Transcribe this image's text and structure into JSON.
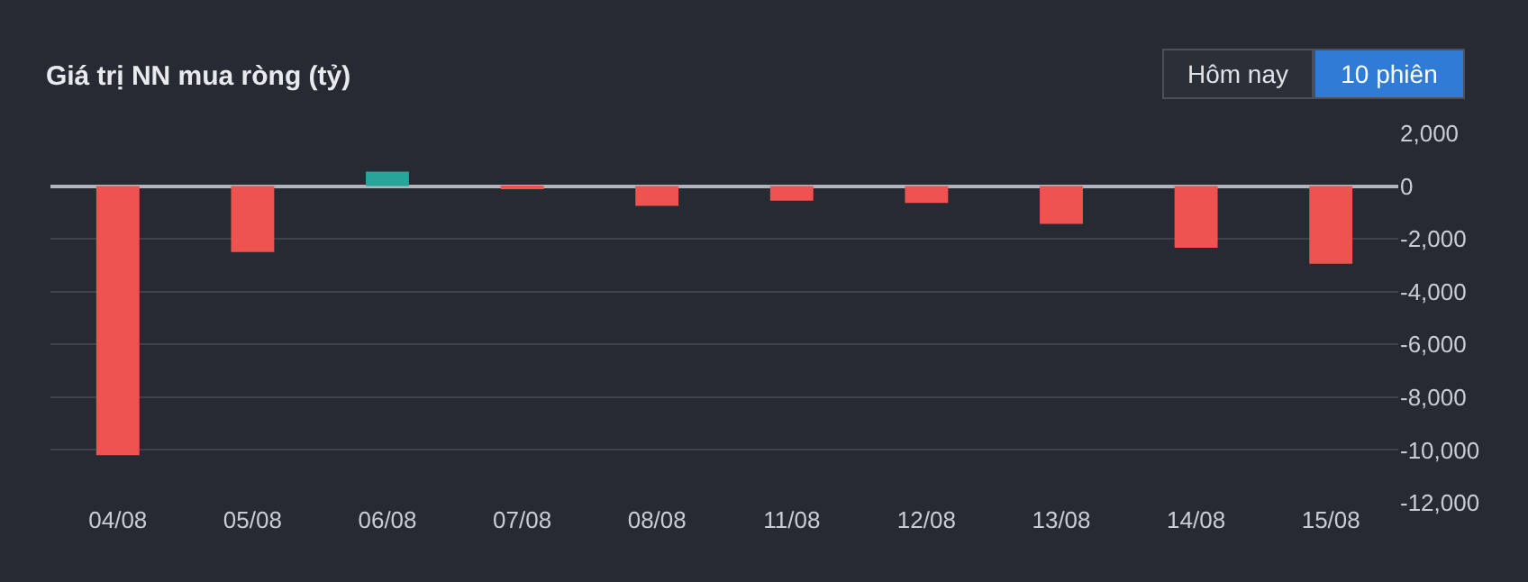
{
  "chart_data": {
    "type": "bar",
    "title": "Giá trị NN mua ròng (tỷ)",
    "categories": [
      "04/08",
      "05/08",
      "06/08",
      "07/08",
      "08/08",
      "11/08",
      "12/08",
      "13/08",
      "14/08",
      "15/08"
    ],
    "values": [
      -10200,
      -2500,
      550,
      -50,
      -750,
      -550,
      -640,
      -1430,
      -2340,
      -2940
    ],
    "colors": [
      "#ef5350",
      "#ef5350",
      "#26a69a",
      "#ef5350",
      "#ef5350",
      "#ef5350",
      "#ef5350",
      "#ef5350",
      "#ef5350",
      "#ef5350"
    ],
    "ylim": [
      -12000,
      2000
    ],
    "yticks": [
      {
        "value": 2000,
        "label": "2,000"
      },
      0,
      {
        "value": -2000,
        "label": "-2,000"
      },
      {
        "value": -4000,
        "label": "-4,000"
      },
      {
        "value": -6000,
        "label": "-6,000"
      },
      {
        "value": -8000,
        "label": "-8,000"
      },
      {
        "value": -10000,
        "label": "-10,000"
      },
      {
        "value": -12000,
        "label": "-12,000"
      }
    ],
    "grid": "y",
    "annotations": [
      "Hôm nay",
      "10 phiên"
    ]
  }
}
